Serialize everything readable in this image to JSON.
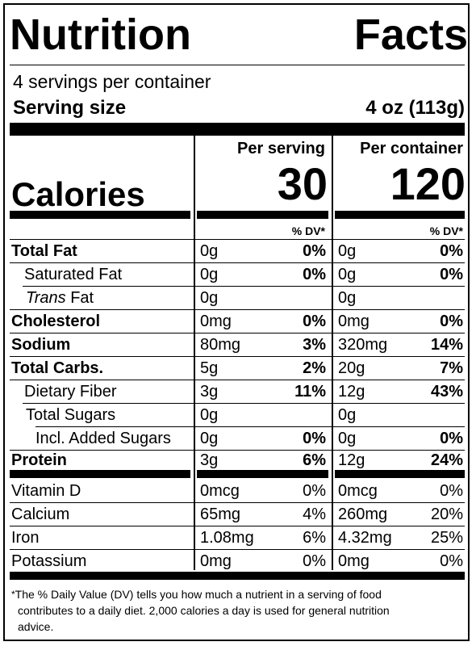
{
  "title_words": [
    "Nutrition",
    "Facts"
  ],
  "servings_per_container": "4 servings per container",
  "serving_size_label": "Serving size",
  "serving_size_value": "4 oz (113g)",
  "calories_label": "Calories",
  "per_serving_label": "Per serving",
  "per_container_label": "Per container",
  "calories_per_serving": "30",
  "calories_per_container": "120",
  "dv_label": "% DV*",
  "nutrients": [
    {
      "name": "Total Fat",
      "bold": true,
      "indent": 0,
      "amt_serving": "0g",
      "dv_serving": "0%",
      "amt_container": "0g",
      "dv_container": "0%"
    },
    {
      "name": "Saturated Fat",
      "bold": false,
      "indent": 1,
      "amt_serving": "0g",
      "dv_serving": "0%",
      "amt_container": "0g",
      "dv_container": "0%"
    },
    {
      "name_italic": "Trans",
      "name": " Fat",
      "bold": false,
      "indent": 1,
      "amt_serving": "0g",
      "dv_serving": "",
      "amt_container": "0g",
      "dv_container": ""
    },
    {
      "name": "Cholesterol",
      "bold": true,
      "indent": 0,
      "amt_serving": "0mg",
      "dv_serving": "0%",
      "amt_container": "0mg",
      "dv_container": "0%"
    },
    {
      "name": "Sodium",
      "bold": true,
      "indent": 0,
      "amt_serving": "80mg",
      "dv_serving": "3%",
      "amt_container": "320mg",
      "dv_container": "14%"
    },
    {
      "name": "Total Carbs.",
      "bold": true,
      "indent": 0,
      "amt_serving": "5g",
      "dv_serving": "2%",
      "amt_container": "20g",
      "dv_container": "7%"
    },
    {
      "name": "Dietary Fiber",
      "bold": false,
      "indent": 1,
      "amt_serving": "3g",
      "dv_serving": "11%",
      "amt_container": "12g",
      "dv_container": "43%"
    },
    {
      "name": "Total Sugars",
      "bold": false,
      "indent": 1,
      "amt_serving": "0g",
      "dv_serving": "",
      "amt_container": "0g",
      "dv_container": ""
    },
    {
      "name": "Incl. Added Sugars",
      "bold": false,
      "indent": 2,
      "amt_serving": "0g",
      "dv_serving": "0%",
      "amt_container": "0g",
      "dv_container": "0%"
    },
    {
      "name": "Protein",
      "bold": true,
      "indent": 0,
      "amt_serving": "3g",
      "dv_serving": "6%",
      "amt_container": "12g",
      "dv_container": "24%"
    }
  ],
  "vitamins": [
    {
      "name": "Vitamin D",
      "amt_serving": "0mcg",
      "dv_serving": "0%",
      "amt_container": "0mcg",
      "dv_container": "0%"
    },
    {
      "name": "Calcium",
      "amt_serving": "65mg",
      "dv_serving": "4%",
      "amt_container": "260mg",
      "dv_container": "20%"
    },
    {
      "name": "Iron",
      "amt_serving": "1.08mg",
      "dv_serving": "6%",
      "amt_container": "4.32mg",
      "dv_container": "25%"
    },
    {
      "name": "Potassium",
      "amt_serving": "0mg",
      "dv_serving": "0%",
      "amt_container": "0mg",
      "dv_container": "0%"
    }
  ],
  "footnote_star": "*",
  "footnote_line1": "The % Daily Value (DV) tells you how much a nutrient in a serving of food",
  "footnote_line2": "contributes to a daily diet. 2,000 calories a day is used for general nutrition",
  "footnote_line3": "advice."
}
